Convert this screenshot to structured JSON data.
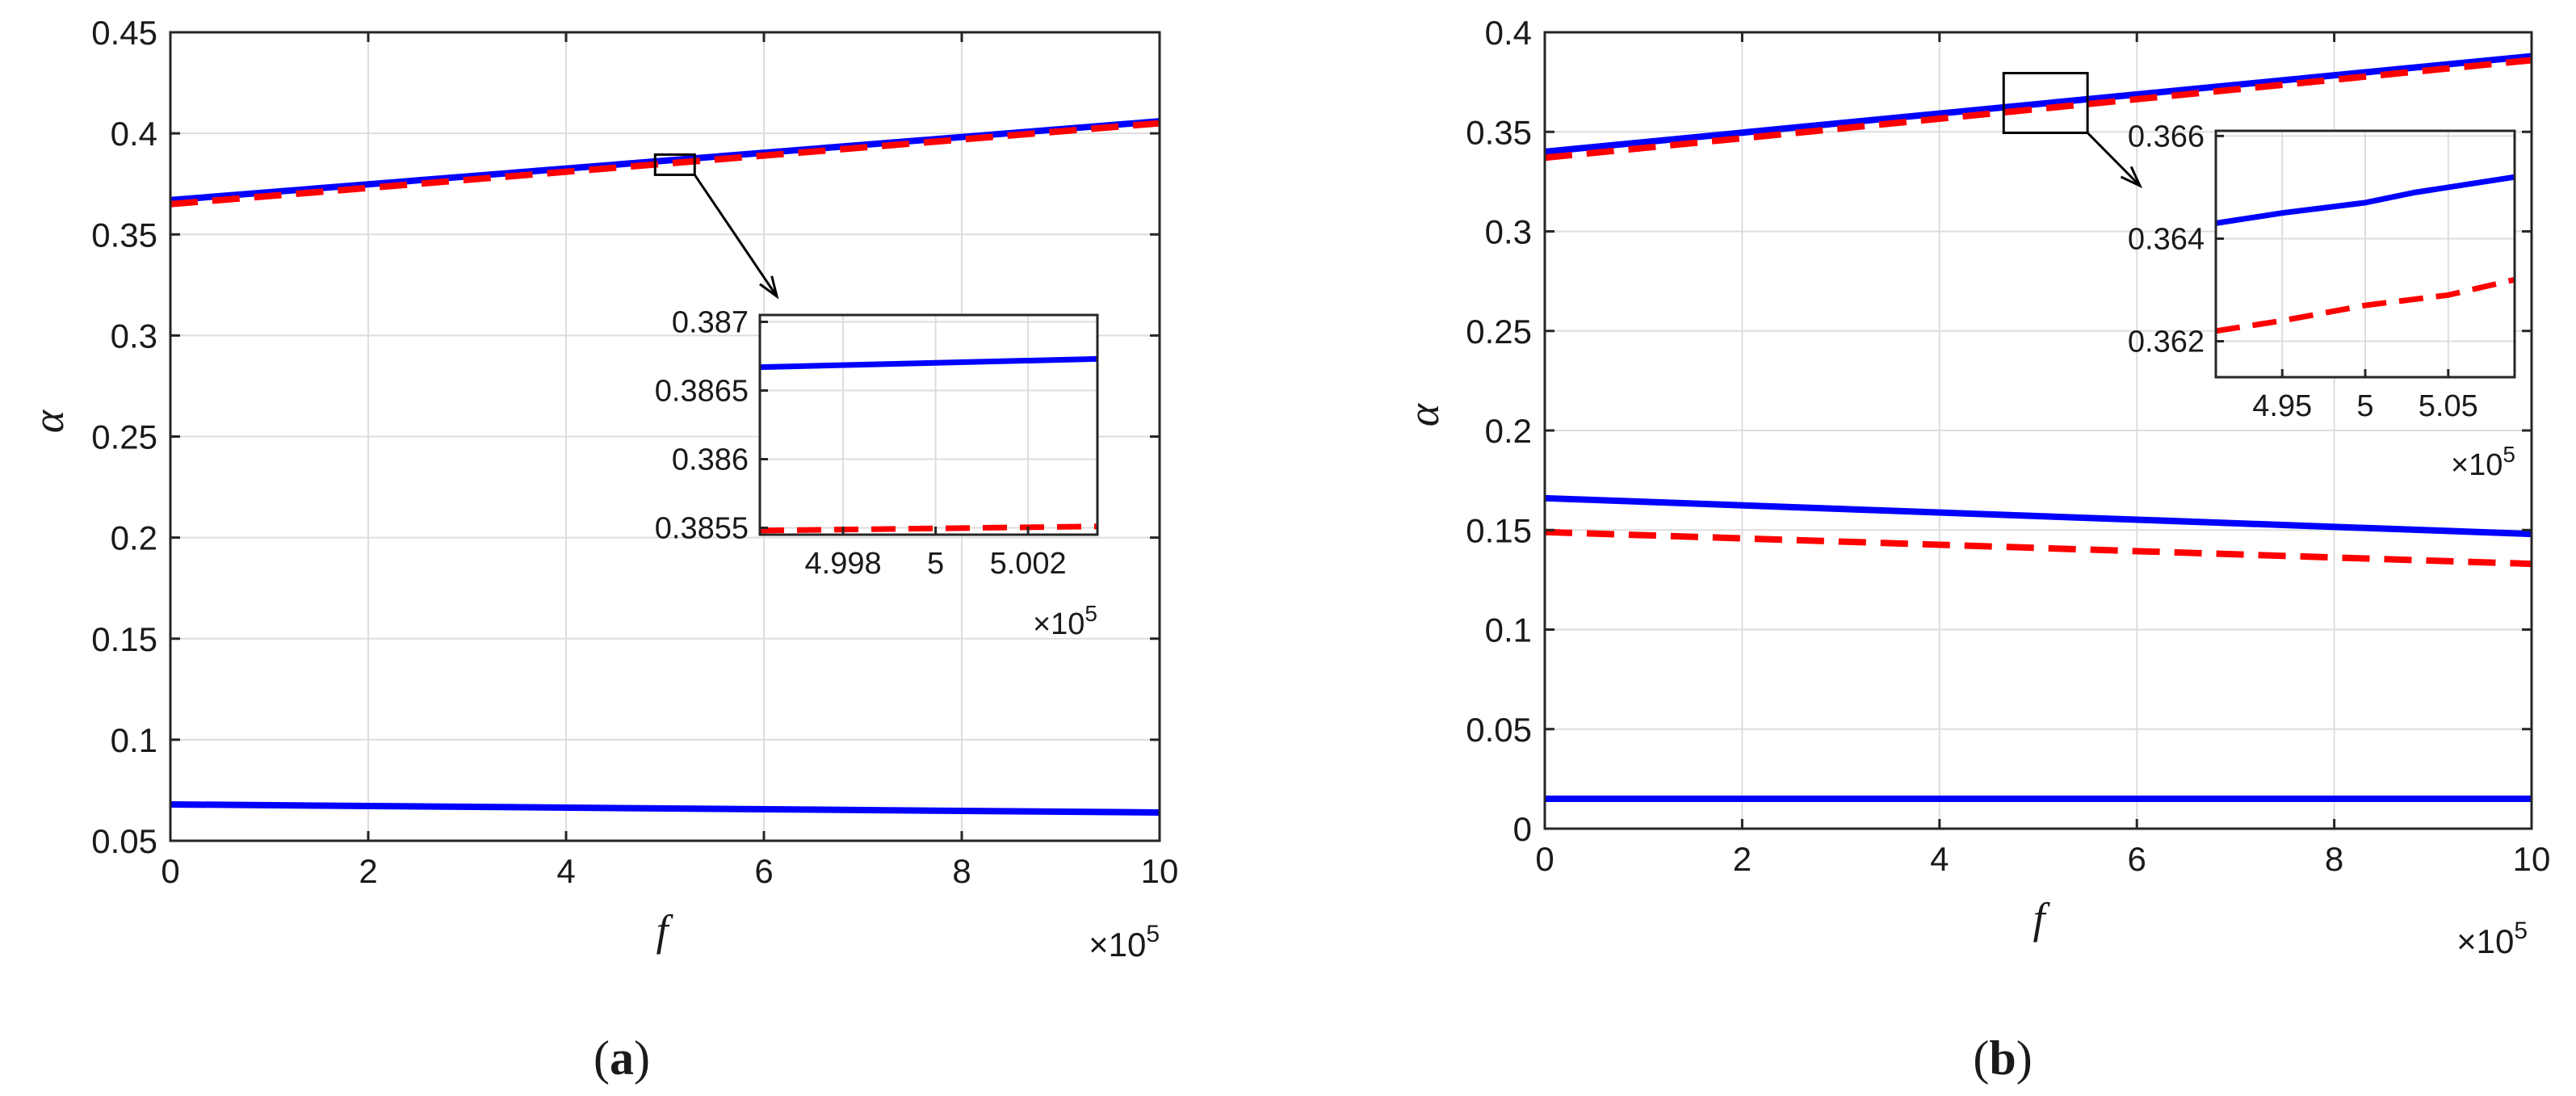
{
  "colors": {
    "solid": "#0000ff",
    "dashed": "#ff0000",
    "grid": "#dddddd",
    "axis": "#262626"
  },
  "chart_data": [
    {
      "id": "a",
      "type": "line",
      "caption_open": "(",
      "caption_letter": "a",
      "caption_close": ")",
      "xlabel": "f",
      "ylabel": "α",
      "x_multiplier_base": "×10",
      "x_multiplier_exp": "5",
      "xlim": [
        0,
        10
      ],
      "ylim": [
        0.05,
        0.45
      ],
      "xticks": [
        0,
        2,
        4,
        6,
        8,
        10
      ],
      "xtick_labels": [
        "0",
        "2",
        "4",
        "6",
        "8",
        "10"
      ],
      "yticks": [
        0.05,
        0.1,
        0.15,
        0.2,
        0.25,
        0.3,
        0.35,
        0.4,
        0.45
      ],
      "ytick_labels": [
        "0.05",
        "0.1",
        "0.15",
        "0.2",
        "0.25",
        "0.3",
        "0.35",
        "0.4",
        "0.45"
      ],
      "grid": true,
      "series": [
        {
          "name": "solid branch 1",
          "style": "solid",
          "x": [
            0,
            10
          ],
          "y": [
            0.367,
            0.406
          ]
        },
        {
          "name": "dashed branch 1",
          "style": "dashed",
          "x": [
            0,
            10
          ],
          "y": [
            0.365,
            0.405
          ]
        },
        {
          "name": "solid branch 2",
          "style": "solid",
          "x": [
            0,
            10
          ],
          "y": [
            0.068,
            0.064
          ]
        }
      ],
      "zoom_box": {
        "xlim": [
          4.9,
          5.3
        ],
        "ylim": [
          0.3795,
          0.3895
        ]
      },
      "inset": {
        "xlim": [
          4.9962,
          5.0035
        ],
        "ylim": [
          0.38545,
          0.38705
        ],
        "xticks": [
          4.998,
          5.0,
          5.002
        ],
        "xtick_labels": [
          "4.998",
          "5",
          "5.002"
        ],
        "yticks": [
          0.3855,
          0.386,
          0.3865,
          0.387
        ],
        "ytick_labels": [
          "0.3855",
          "0.386",
          "0.3865",
          "0.387"
        ],
        "x_multiplier_base": "×10",
        "x_multiplier_exp": "5",
        "series": [
          {
            "name": "solid zoom",
            "style": "solid",
            "x": [
              4.9962,
              5.0035
            ],
            "y": [
              0.38667,
              0.38673
            ]
          },
          {
            "name": "dashed zoom",
            "style": "dashed",
            "x": [
              4.9962,
              5.0035
            ],
            "y": [
              0.38548,
              0.38551
            ]
          }
        ]
      }
    },
    {
      "id": "b",
      "type": "line",
      "caption_open": "(",
      "caption_letter": "b",
      "caption_close": ")",
      "xlabel": "f",
      "ylabel": "α",
      "x_multiplier_base": "×10",
      "x_multiplier_exp": "5",
      "xlim": [
        0,
        10
      ],
      "ylim": [
        0,
        0.4
      ],
      "xticks": [
        0,
        2,
        4,
        6,
        8,
        10
      ],
      "xtick_labels": [
        "0",
        "2",
        "4",
        "6",
        "8",
        "10"
      ],
      "yticks": [
        0,
        0.05,
        0.1,
        0.15,
        0.2,
        0.25,
        0.3,
        0.35,
        0.4
      ],
      "ytick_labels": [
        "0",
        "0.05",
        "0.1",
        "0.15",
        "0.2",
        "0.25",
        "0.3",
        "0.35",
        "0.4"
      ],
      "grid": true,
      "series": [
        {
          "name": "solid branch 1",
          "style": "solid",
          "x": [
            0,
            10
          ],
          "y": [
            0.34,
            0.388
          ]
        },
        {
          "name": "dashed branch 1",
          "style": "dashed",
          "x": [
            0,
            10
          ],
          "y": [
            0.337,
            0.386
          ]
        },
        {
          "name": "solid branch 2",
          "style": "solid",
          "x": [
            0,
            10
          ],
          "y": [
            0.166,
            0.148
          ]
        },
        {
          "name": "dashed branch 2",
          "style": "dashed",
          "x": [
            0,
            10
          ],
          "y": [
            0.149,
            0.133
          ]
        },
        {
          "name": "solid branch 3",
          "style": "solid",
          "x": [
            0,
            10
          ],
          "y": [
            0.015,
            0.015
          ]
        }
      ],
      "zoom_box": {
        "xlim": [
          4.65,
          5.5
        ],
        "ylim": [
          0.3495,
          0.3795
        ]
      },
      "inset": {
        "xlim": [
          4.91,
          5.09
        ],
        "ylim": [
          0.3613,
          0.3661
        ],
        "xticks": [
          4.95,
          5.0,
          5.05
        ],
        "xtick_labels": [
          "4.95",
          "5",
          "5.05"
        ],
        "yticks": [
          0.362,
          0.364,
          0.366
        ],
        "ytick_labels": [
          "0.362",
          "0.364",
          "0.366"
        ],
        "x_multiplier_base": "×10",
        "x_multiplier_exp": "5",
        "series": [
          {
            "name": "solid zoom",
            "style": "solid",
            "x": [
              4.91,
              4.95,
              5.0,
              5.03,
              5.09
            ],
            "y": [
              0.3643,
              0.3645,
              0.3647,
              0.3649,
              0.3652
            ]
          },
          {
            "name": "dashed zoom",
            "style": "dashed",
            "x": [
              4.91,
              4.95,
              5.0,
              5.05,
              5.09
            ],
            "y": [
              0.3622,
              0.3624,
              0.3627,
              0.3629,
              0.3632
            ]
          }
        ]
      }
    }
  ]
}
